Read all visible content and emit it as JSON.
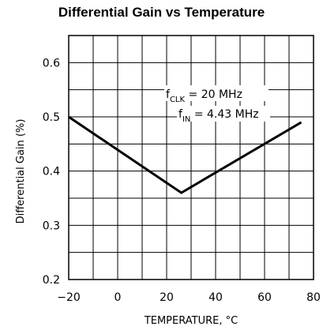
{
  "chart_data": {
    "type": "line",
    "title": "Differential Gain vs Temperature",
    "xlabel": "TEMPERATURE, °C",
    "ylabel": "Differential Gain (%)",
    "xlim": [
      -20,
      80
    ],
    "ylim": [
      0.2,
      0.65
    ],
    "xticks": [
      -20,
      0,
      20,
      40,
      60,
      80
    ],
    "yticks": [
      0.2,
      0.3,
      0.4,
      0.5,
      0.6
    ],
    "xtick_labels": [
      "−20",
      "0",
      "20",
      "40",
      "60",
      "80"
    ],
    "ytick_labels": [
      "0.2",
      "0.3",
      "0.4",
      "0.5",
      "0.6"
    ],
    "grid": true,
    "series": [
      {
        "x": [
          -20,
          26,
          75
        ],
        "y": [
          0.5,
          0.36,
          0.49
        ],
        "color": "#000000"
      }
    ],
    "annotations": [
      {
        "prefix": "f",
        "sub": "CLK",
        "text": " = 20 MHz"
      },
      {
        "prefix": "f",
        "sub": "IN",
        "text": " = 4.43 MHz"
      }
    ]
  }
}
